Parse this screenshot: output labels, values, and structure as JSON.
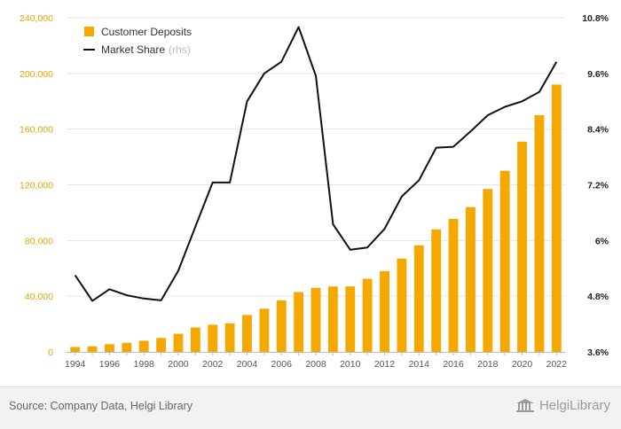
{
  "chart_data": {
    "type": "bar-line-combo",
    "title": "",
    "x": [
      "1994",
      "1995",
      "1996",
      "1997",
      "1998",
      "1999",
      "2000",
      "2001",
      "2002",
      "2003",
      "2004",
      "2005",
      "2006",
      "2007",
      "2008",
      "2009",
      "2010",
      "2011",
      "2012",
      "2013",
      "2014",
      "2015",
      "2016",
      "2017",
      "2018",
      "2019",
      "2020",
      "2021",
      "2022"
    ],
    "x_tick_labels": [
      "1994",
      "1996",
      "1998",
      "2000",
      "2002",
      "2004",
      "2006",
      "2008",
      "2010",
      "2012",
      "2014",
      "2016",
      "2018",
      "2020",
      "2022"
    ],
    "series": [
      {
        "name": "Customer Deposits",
        "type": "bar",
        "axis": "left",
        "color": "#f5a800",
        "values": [
          3500,
          4000,
          5500,
          6500,
          8000,
          10000,
          13000,
          17500,
          19500,
          20500,
          26500,
          31000,
          37000,
          43000,
          46000,
          47000,
          47000,
          52500,
          58000,
          67000,
          76500,
          88000,
          95500,
          104000,
          117000,
          130000,
          151000,
          170000,
          192000
        ]
      },
      {
        "name": "Market Share",
        "suffix": "(rhs)",
        "type": "line",
        "axis": "right",
        "color": "#111111",
        "values": [
          5.25,
          4.7,
          4.95,
          4.82,
          4.75,
          4.71,
          5.35,
          6.3,
          7.25,
          7.25,
          9.0,
          9.6,
          9.85,
          10.6,
          9.55,
          6.35,
          5.8,
          5.85,
          6.25,
          6.95,
          7.3,
          8.0,
          8.02,
          8.35,
          8.7,
          8.88,
          9.0,
          9.2,
          9.85
        ]
      }
    ],
    "y_left": {
      "lim": [
        0,
        240000
      ],
      "ticks": [
        0,
        40000,
        80000,
        120000,
        160000,
        200000,
        240000
      ],
      "tick_labels": [
        "0",
        "40,000",
        "80,000",
        "120,000",
        "160,000",
        "200,000",
        "240,000"
      ],
      "color": "#e0a400"
    },
    "y_right": {
      "lim": [
        3.6,
        10.8
      ],
      "ticks": [
        3.6,
        4.8,
        6.0,
        7.2,
        8.4,
        9.6,
        10.8
      ],
      "tick_labels": [
        "3.6%",
        "4.8%",
        "6%",
        "7.2%",
        "8.4%",
        "9.6%",
        "10.8%"
      ],
      "color": "#222222"
    },
    "grid": "horizontal",
    "legend_position": "top-left"
  },
  "legend": {
    "deposits_label": "Customer Deposits",
    "share_label": "Market Share",
    "share_suffix": "(rhs)"
  },
  "footer": {
    "source": "Source: Company Data, Helgi Library",
    "brand": "HelgiLibrary",
    "brand_icon": "library-building-icon"
  }
}
